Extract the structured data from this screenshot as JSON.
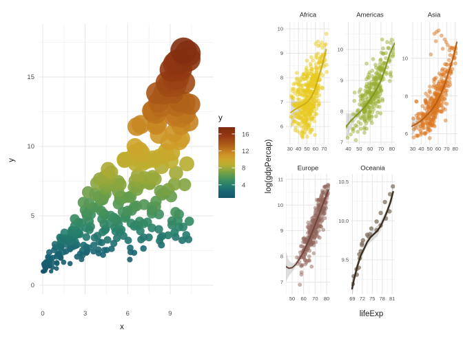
{
  "figure": {
    "background": "#ffffff"
  },
  "chart_data": [
    {
      "type": "scatter",
      "title": "",
      "xlabel": "x",
      "ylabel": "y",
      "x_ticks": [
        0,
        3,
        6,
        9
      ],
      "y_ticks": [
        0,
        5,
        10,
        15
      ],
      "x_minor": [
        1.5,
        4.5,
        7.5,
        10.5
      ],
      "y_minor": [
        2.5,
        7.5,
        12.5,
        17.5
      ],
      "x_range": [
        -0.25,
        12.1
      ],
      "y_range": [
        -0.6,
        18.8
      ],
      "legend": {
        "title": "y",
        "ticks": [
          16,
          12,
          8,
          4
        ],
        "bar_range": [
          0.9,
          17.6
        ]
      },
      "color_stops": [
        [
          0.9,
          "#15566b"
        ],
        [
          2.5,
          "#1b6673"
        ],
        [
          4,
          "#27806b"
        ],
        [
          5,
          "#3b8d60"
        ],
        [
          6,
          "#579853"
        ],
        [
          7,
          "#7aa244"
        ],
        [
          8,
          "#a0aa38"
        ],
        [
          9,
          "#bfae2f"
        ],
        [
          10,
          "#cda42a"
        ],
        [
          11,
          "#cd9426"
        ],
        [
          12,
          "#c47d20"
        ],
        [
          13,
          "#b4671b"
        ],
        [
          14,
          "#a65317"
        ],
        [
          15.5,
          "#943a13"
        ],
        [
          17.6,
          "#7c2a10"
        ]
      ],
      "points_spec": {
        "n": 295,
        "seed": 20240613,
        "x_max": 10.4,
        "x_pow": 1.08,
        "slope_min": 0.17,
        "slope_span": 1.38,
        "intercept": 1.25,
        "noise_sd": 0.3,
        "y_min": 1.0,
        "y_max": 17.3,
        "r_base": 2.2,
        "r_per_y": 1.0,
        "opacity": 0.9
      },
      "extra_points": [
        [
          10.25,
          16.3
        ],
        [
          9.7,
          15.6
        ],
        [
          9.3,
          14.9
        ],
        [
          8.9,
          14.35
        ],
        [
          9.95,
          14.6
        ],
        [
          8.55,
          13.8
        ],
        [
          8.2,
          13.2
        ],
        [
          7.8,
          12.6
        ],
        [
          9.45,
          12.9
        ],
        [
          10.1,
          12.35
        ],
        [
          6.15,
          1.85
        ],
        [
          7.5,
          3.45
        ],
        [
          8.45,
          3.55
        ],
        [
          8.85,
          3.6
        ],
        [
          5.55,
          4.0
        ],
        [
          6.6,
          4.35
        ]
      ]
    },
    {
      "type": "scatter-facets",
      "xlabel": "lifeExp",
      "ylabel": "log(gdpPercap)",
      "ribbon_color": "#999999",
      "ribbon_opacity": 0.32,
      "facets": [
        {
          "name": "Africa",
          "color": "#e7c91f",
          "line_color": "#cfae11",
          "point_r": 2.9,
          "point_opacity": 0.5,
          "x_domain": [
            25.3,
            77
          ],
          "y_domain": [
            5.27,
            10.28
          ],
          "x_ticks": [
            30,
            40,
            50,
            60,
            70
          ],
          "y_ticks": [
            6,
            7,
            8,
            9,
            10
          ],
          "gen": {
            "n": 430,
            "seed": 101,
            "mean": 52,
            "sd": 9.2,
            "min": 31.2,
            "max": 76,
            "noise_sd": 0.7,
            "y_clamp": [
              5.5,
              10.05
            ]
          },
          "trend": [
            [
              31,
              6.58
            ],
            [
              36,
              6.7
            ],
            [
              42,
              6.82
            ],
            [
              47,
              6.92
            ],
            [
              51,
              7.02
            ],
            [
              55,
              7.2
            ],
            [
              59,
              7.5
            ],
            [
              63,
              7.95
            ],
            [
              67,
              8.4
            ],
            [
              70,
              8.8
            ],
            [
              72.5,
              9.15
            ]
          ],
          "ribbon_hw": [
            0.7,
            0.35,
            0.2,
            0.13,
            0.1,
            0.1,
            0.1,
            0.12,
            0.16,
            0.26,
            0.4
          ]
        },
        {
          "name": "Americas",
          "color": "#98ad31",
          "line_color": "#7e9722",
          "point_r": 2.9,
          "point_opacity": 0.5,
          "x_domain": [
            37.8,
            82.6
          ],
          "y_domain": [
            6.93,
            10.89
          ],
          "x_ticks": [
            40,
            50,
            60,
            70,
            80
          ],
          "y_ticks": [
            7,
            8,
            9,
            10
          ],
          "gen": {
            "n": 285,
            "seed": 202,
            "mean": 63,
            "sd": 9.2,
            "min": 37.8,
            "max": 82,
            "noise_sd": 0.42,
            "y_clamp": [
              7.05,
              10.72
            ]
          },
          "trend": [
            [
              38,
              7.5
            ],
            [
              42,
              7.68
            ],
            [
              46,
              7.82
            ],
            [
              50,
              7.95
            ],
            [
              54,
              8.1
            ],
            [
              58,
              8.27
            ],
            [
              62,
              8.48
            ],
            [
              66,
              8.72
            ],
            [
              70,
              9.0
            ],
            [
              74,
              9.4
            ],
            [
              78,
              9.85
            ],
            [
              81,
              10.1
            ],
            [
              82.5,
              10.2
            ]
          ],
          "ribbon_hw": [
            0.45,
            0.24,
            0.15,
            0.1,
            0.08,
            0.07,
            0.07,
            0.08,
            0.09,
            0.1,
            0.12,
            0.16,
            0.22
          ]
        },
        {
          "name": "Asia",
          "color": "#d9751f",
          "line_color": "#b85d13",
          "point_r": 2.9,
          "point_opacity": 0.5,
          "x_domain": [
            27.5,
            82.7
          ],
          "y_domain": [
            5.44,
            11.92
          ],
          "x_ticks": [
            30,
            40,
            50,
            60,
            70,
            80
          ],
          "y_ticks": [
            6,
            8,
            10
          ],
          "gen": {
            "n": 335,
            "seed": 303,
            "mean": 57,
            "sd": 11.5,
            "min": 28.8,
            "max": 82.5,
            "noise_sd": 0.58,
            "y_clamp": [
              5.75,
              11.0
            ]
          },
          "extra_points": [
            [
              55.6,
              11.3
            ],
            [
              58.1,
              11.4
            ],
            [
              60.4,
              11.47
            ],
            [
              63.9,
              11.2
            ],
            [
              67.7,
              11.0
            ],
            [
              69.4,
              10.85
            ],
            [
              71.2,
              10.7
            ],
            [
              65.3,
              10.5
            ],
            [
              57.3,
              10.9
            ],
            [
              51.4,
              10.2
            ]
          ],
          "trend": [
            [
              29,
              6.4
            ],
            [
              34,
              6.52
            ],
            [
              40,
              6.7
            ],
            [
              46,
              6.95
            ],
            [
              52,
              7.25
            ],
            [
              58,
              7.65
            ],
            [
              64,
              8.2
            ],
            [
              69,
              8.8
            ],
            [
              74,
              9.5
            ],
            [
              78,
              10.1
            ],
            [
              82,
              10.85
            ]
          ],
          "ribbon_hw": [
            0.55,
            0.3,
            0.17,
            0.11,
            0.09,
            0.08,
            0.09,
            0.1,
            0.13,
            0.17,
            0.26
          ]
        },
        {
          "name": "Europe",
          "color": "#92655b",
          "line_color": "#6d443c",
          "point_r": 2.9,
          "point_opacity": 0.5,
          "x_domain": [
            44.6,
            83
          ],
          "y_domain": [
            6.53,
            11.21
          ],
          "x_ticks": [
            50,
            60,
            70,
            80
          ],
          "y_ticks": [
            7,
            8,
            9,
            10,
            11
          ],
          "gen": {
            "n": 345,
            "seed": 404,
            "mean": 70,
            "sd": 7,
            "min": 43.6,
            "max": 81.9,
            "noise_sd": 0.34,
            "y_clamp": [
              6.86,
              10.82
            ]
          },
          "extra_points": [
            [
              56.8,
              6.9
            ]
          ],
          "trend": [
            [
              44,
              7.62
            ],
            [
              47,
              7.54
            ],
            [
              50,
              7.56
            ],
            [
              53,
              7.68
            ],
            [
              56,
              7.88
            ],
            [
              59,
              8.1
            ],
            [
              62,
              8.38
            ],
            [
              65,
              8.68
            ],
            [
              68,
              9.0
            ],
            [
              71,
              9.35
            ],
            [
              74,
              9.7
            ],
            [
              77,
              10.05
            ],
            [
              79.5,
              10.35
            ],
            [
              81.5,
              10.58
            ]
          ],
          "ribbon_hw": [
            0.65,
            0.32,
            0.16,
            0.1,
            0.07,
            0.06,
            0.06,
            0.06,
            0.06,
            0.07,
            0.08,
            0.09,
            0.12,
            0.17
          ]
        },
        {
          "name": "Oceania",
          "color": "#7e7060",
          "line_color": "#3a2d21",
          "point_r": 3.2,
          "point_opacity": 0.75,
          "line_width": 2.4,
          "x_domain": [
            68.7,
            81.8
          ],
          "y_domain": [
            9.06,
            10.6
          ],
          "x_ticks": [
            69,
            72,
            75,
            78,
            81
          ],
          "y_ticks": [
            9.5,
            10,
            10.5
          ],
          "y_tick_labels": [
            "9.5",
            "10.0",
            "10.5"
          ],
          "points": [
            [
              69.12,
              9.19
            ],
            [
              70.33,
              9.31
            ],
            [
              70.93,
              9.4
            ],
            [
              71.1,
              9.57
            ],
            [
              71.93,
              9.71
            ],
            [
              73.49,
              9.82
            ],
            [
              74.74,
              9.9
            ],
            [
              76.32,
              9.99
            ],
            [
              77.56,
              10.1
            ],
            [
              78.83,
              10.24
            ],
            [
              80.37,
              10.34
            ],
            [
              81.23,
              10.44
            ],
            [
              69.39,
              9.29
            ],
            [
              70.26,
              9.38
            ],
            [
              71.24,
              9.52
            ],
            [
              71.52,
              9.61
            ],
            [
              71.89,
              9.69
            ],
            [
              72.22,
              9.75
            ],
            [
              73.84,
              9.8
            ],
            [
              74.32,
              9.83
            ],
            [
              76.33,
              9.88
            ],
            [
              77.55,
              9.94
            ],
            [
              79.11,
              10.03
            ],
            [
              80.2,
              10.12
            ]
          ],
          "trend": [
            [
              68.9,
              9.13
            ],
            [
              69.5,
              9.25
            ],
            [
              70.5,
              9.42
            ],
            [
              71.5,
              9.55
            ],
            [
              72.5,
              9.64
            ],
            [
              73.5,
              9.73
            ],
            [
              74.5,
              9.79
            ],
            [
              75.5,
              9.83
            ],
            [
              76.5,
              9.87
            ],
            [
              77.5,
              9.93
            ],
            [
              78.5,
              10.02
            ],
            [
              79.5,
              10.12
            ],
            [
              80.5,
              10.24
            ],
            [
              81.3,
              10.37
            ]
          ],
          "ribbon_hw": [
            0.12,
            0.08,
            0.06,
            0.05,
            0.05,
            0.05,
            0.06,
            0.07,
            0.07,
            0.06,
            0.05,
            0.05,
            0.06,
            0.09
          ]
        }
      ]
    }
  ]
}
